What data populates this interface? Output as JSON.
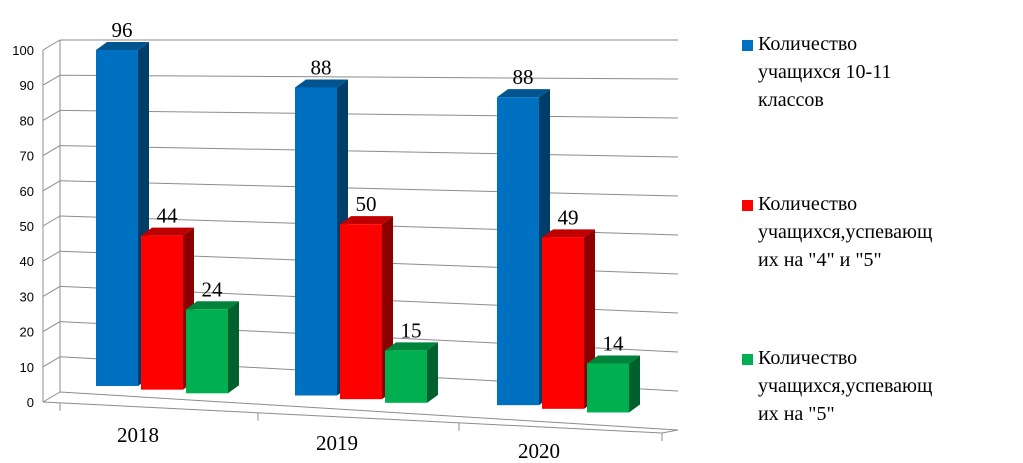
{
  "chart_data": {
    "type": "bar",
    "categories": [
      "2018",
      "2019",
      "2020"
    ],
    "series": [
      {
        "name": "Количество\nучащихся 10-11\nклассов",
        "values": [
          96,
          88,
          88
        ],
        "color": "#0070C0"
      },
      {
        "name": "Количество\nучащихся,успевающ\nих на \"4\" и \"5\"",
        "values": [
          44,
          50,
          49
        ],
        "color": "#FF0000"
      },
      {
        "name": "Количество\nучащихся,успевающ\nих на \"5\"",
        "values": [
          24,
          15,
          14
        ],
        "color": "#00B050"
      }
    ],
    "y_ticks": [
      "0",
      "10",
      "20",
      "30",
      "40",
      "50",
      "60",
      "70",
      "80",
      "90",
      "100"
    ],
    "ylim": [
      0,
      100
    ],
    "grid": true,
    "legend_position": "right",
    "three_d": true
  }
}
